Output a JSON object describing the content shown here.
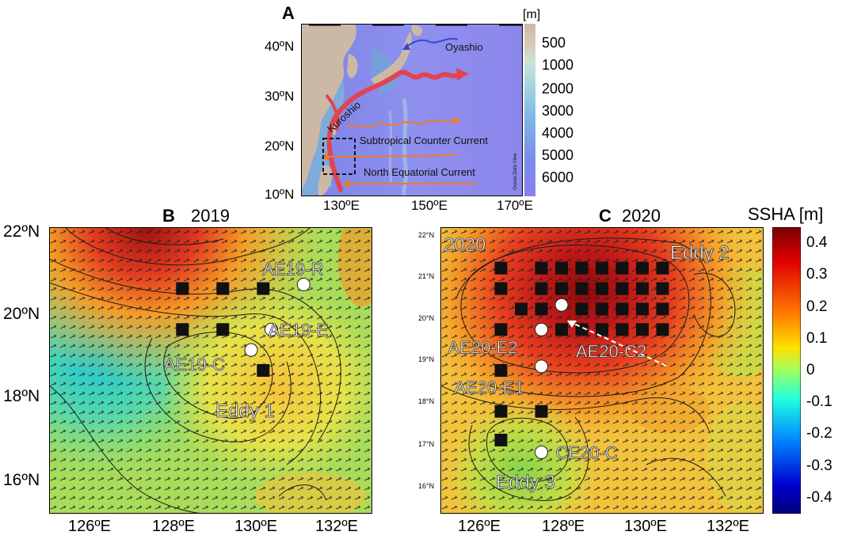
{
  "panel_a": {
    "letter": "A",
    "unit": "[m]",
    "depth_ticks": [
      "500",
      "1000",
      "2000",
      "3000",
      "4000",
      "5000",
      "6000"
    ],
    "lat_ticks": [
      "40ºN",
      "30ºN",
      "20ºN",
      "10ºN"
    ],
    "lon_ticks": [
      "130ºE",
      "150ºE",
      "170ºE"
    ],
    "currents": {
      "oyashio": "Oyashio",
      "kuroshio": "Kuroshio",
      "subtropical": "Subtropical Counter Current",
      "north_equatorial": "North Equatorial Current"
    },
    "watermark": "Ocean Data View",
    "colors": {
      "kuroshio": "#e2444f",
      "oyashio": "#3548d8",
      "counter_current": "#f07a2c",
      "land": "#cbb9a6",
      "ocean": "#8a8ce8"
    }
  },
  "panel_b": {
    "letter": "B",
    "year": "2019",
    "lat_ticks": [
      "22ºN",
      "20ºN",
      "18ºN",
      "16ºN"
    ],
    "lon_ticks": [
      "126ºE",
      "128ºE",
      "130ºE",
      "132ºE"
    ],
    "eddy_label": "Eddy 1",
    "stations": [
      {
        "name": "AE19-R",
        "lon": 131.3,
        "lat": 20.6
      },
      {
        "name": "AE19-E",
        "lon": 130.5,
        "lat": 19.5
      },
      {
        "name": "AE19-C",
        "lon": 130.0,
        "lat": 19.0
      }
    ],
    "sampling_points": [
      {
        "lon": 128.3,
        "lat": 20.5
      },
      {
        "lon": 129.3,
        "lat": 20.5
      },
      {
        "lon": 130.3,
        "lat": 20.5
      },
      {
        "lon": 128.3,
        "lat": 19.5
      },
      {
        "lon": 129.3,
        "lat": 19.5
      },
      {
        "lon": 130.3,
        "lat": 18.5
      }
    ]
  },
  "panel_c": {
    "letter": "C",
    "year": "2020",
    "inset_year": "2020",
    "lat_ticks": [
      "22°N",
      "21°N",
      "20°N",
      "19°N",
      "18°N",
      "17°N",
      "16°N"
    ],
    "lon_ticks": [
      "126ºE",
      "128ºE",
      "130ºE",
      "132ºE"
    ],
    "eddy_labels": {
      "eddy2": "Eddy 2",
      "eddy3": "Eddy 3"
    },
    "stations": [
      {
        "name": "AE20-C2",
        "lon": 128.0,
        "lat": 20.1
      },
      {
        "name": "AE20-E2",
        "lon": 127.5,
        "lat": 19.5
      },
      {
        "name": "AE20-E1",
        "lon": 127.5,
        "lat": 18.6
      },
      {
        "name": "CE20-C",
        "lon": 127.5,
        "lat": 16.5
      }
    ]
  },
  "colorbar": {
    "title": "SSHA [m]",
    "ticks": [
      "0.4",
      "0.3",
      "0.2",
      "0.1",
      "0",
      "-0.1",
      "-0.2",
      "-0.3",
      "-0.4"
    ],
    "range": [
      -0.45,
      0.45
    ],
    "colormap": "jet"
  }
}
